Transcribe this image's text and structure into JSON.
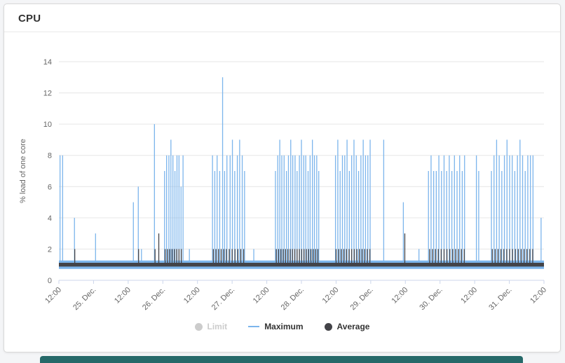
{
  "panel": {
    "title": "CPU"
  },
  "colors": {
    "page_background": "#f4f5f7",
    "card_background": "#ffffff",
    "card_border": "#d9d9d9",
    "grid": "#e6e6e6",
    "axis": "#ccd6eb",
    "tick_text": "#666666",
    "maximum": "#7cb5ec",
    "average": "#434348",
    "limit_disabled": "#cccccc",
    "next_section": "#266969"
  },
  "chart_data": {
    "type": "line",
    "title": "",
    "xlabel": "",
    "ylabel": "% load of one core",
    "ylim": [
      0,
      14
    ],
    "yticks": [
      0,
      2,
      4,
      6,
      8,
      10,
      12,
      14
    ],
    "grid": "horizontal",
    "legend_position": "bottom-center",
    "x_unit": "hours from first tick (12:00 24 Dec) to last tick (12:00 31 Dec)",
    "xlim": [
      0,
      168
    ],
    "xticks": [
      {
        "t": 0,
        "label": "12:00"
      },
      {
        "t": 12,
        "label": "25. Dec."
      },
      {
        "t": 24,
        "label": "12:00"
      },
      {
        "t": 36,
        "label": "26. Dec."
      },
      {
        "t": 48,
        "label": "12:00"
      },
      {
        "t": 60,
        "label": "27. Dec."
      },
      {
        "t": 72,
        "label": "12:00"
      },
      {
        "t": 84,
        "label": "28. Dec."
      },
      {
        "t": 96,
        "label": "12:00"
      },
      {
        "t": 108,
        "label": "29. Dec."
      },
      {
        "t": 120,
        "label": "12:00"
      },
      {
        "t": 132,
        "label": "30. Dec."
      },
      {
        "t": 144,
        "label": "12:00"
      },
      {
        "t": 156,
        "label": "31. Dec."
      },
      {
        "t": 168,
        "label": "12:00"
      }
    ],
    "legend": [
      {
        "label": "Limit",
        "enabled": false,
        "marker": "dot",
        "color": "#cccccc"
      },
      {
        "label": "Maximum",
        "enabled": true,
        "marker": "line",
        "color": "#7cb5ec"
      },
      {
        "label": "Average",
        "enabled": true,
        "marker": "dot",
        "color": "#434348"
      }
    ],
    "series": [
      {
        "name": "Maximum",
        "color": "#7cb5ec",
        "baseline": 1,
        "band_halfwidth": 0.27,
        "spikes": [
          [
            0.4,
            8
          ],
          [
            1.3,
            8
          ],
          [
            5.4,
            4
          ],
          [
            12.7,
            3
          ],
          [
            25.8,
            5
          ],
          [
            27.5,
            6
          ],
          [
            28.6,
            2
          ],
          [
            33.1,
            10
          ],
          [
            36.6,
            7
          ],
          [
            37.3,
            8
          ],
          [
            38.1,
            8
          ],
          [
            38.8,
            9
          ],
          [
            39.5,
            8
          ],
          [
            40.2,
            7
          ],
          [
            40.9,
            8
          ],
          [
            41.6,
            8
          ],
          [
            42.3,
            6
          ],
          [
            43.0,
            8
          ],
          [
            45.2,
            2
          ],
          [
            53.2,
            8
          ],
          [
            54.0,
            7
          ],
          [
            54.8,
            8
          ],
          [
            55.7,
            7
          ],
          [
            56.7,
            13
          ],
          [
            57.4,
            7
          ],
          [
            58.2,
            8
          ],
          [
            59.3,
            8
          ],
          [
            60.1,
            9
          ],
          [
            60.9,
            7
          ],
          [
            61.8,
            8
          ],
          [
            62.6,
            9
          ],
          [
            63.5,
            8
          ],
          [
            64.3,
            7
          ],
          [
            67.5,
            2
          ],
          [
            75.0,
            7
          ],
          [
            75.8,
            8
          ],
          [
            76.5,
            9
          ],
          [
            77.2,
            8
          ],
          [
            78.0,
            8
          ],
          [
            78.8,
            7
          ],
          [
            79.5,
            8
          ],
          [
            80.3,
            9
          ],
          [
            81.0,
            8
          ],
          [
            81.8,
            8
          ],
          [
            82.5,
            7
          ],
          [
            83.3,
            8
          ],
          [
            84.0,
            9
          ],
          [
            84.8,
            8
          ],
          [
            85.5,
            8
          ],
          [
            86.3,
            7
          ],
          [
            87.0,
            8
          ],
          [
            87.8,
            9
          ],
          [
            88.5,
            8
          ],
          [
            89.3,
            8
          ],
          [
            90.0,
            7
          ],
          [
            95.8,
            8
          ],
          [
            96.6,
            9
          ],
          [
            97.4,
            7
          ],
          [
            98.2,
            8
          ],
          [
            99.0,
            8
          ],
          [
            99.8,
            9
          ],
          [
            100.6,
            7
          ],
          [
            101.4,
            8
          ],
          [
            102.2,
            9
          ],
          [
            103.0,
            8
          ],
          [
            103.8,
            7
          ],
          [
            104.6,
            8
          ],
          [
            105.4,
            9
          ],
          [
            106.2,
            8
          ],
          [
            107.0,
            8
          ],
          [
            107.8,
            9
          ],
          [
            112.5,
            9
          ],
          [
            119.3,
            5
          ],
          [
            124.7,
            2
          ],
          [
            128.0,
            7
          ],
          [
            128.9,
            8
          ],
          [
            129.8,
            7
          ],
          [
            130.7,
            7
          ],
          [
            131.6,
            8
          ],
          [
            132.5,
            7
          ],
          [
            133.4,
            8
          ],
          [
            134.3,
            7
          ],
          [
            135.2,
            8
          ],
          [
            136.1,
            7
          ],
          [
            137.0,
            8
          ],
          [
            137.9,
            7
          ],
          [
            138.8,
            8
          ],
          [
            139.7,
            7
          ],
          [
            140.5,
            8
          ],
          [
            144.6,
            8
          ],
          [
            145.4,
            7
          ],
          [
            149.8,
            7
          ],
          [
            150.7,
            8
          ],
          [
            151.6,
            9
          ],
          [
            152.5,
            8
          ],
          [
            153.4,
            7
          ],
          [
            154.3,
            8
          ],
          [
            155.2,
            9
          ],
          [
            156.1,
            8
          ],
          [
            157.0,
            8
          ],
          [
            157.9,
            7
          ],
          [
            158.8,
            8
          ],
          [
            159.7,
            9
          ],
          [
            160.6,
            8
          ],
          [
            161.5,
            7
          ],
          [
            162.4,
            8
          ],
          [
            163.3,
            8
          ],
          [
            164.2,
            8
          ],
          [
            167.0,
            4
          ]
        ]
      },
      {
        "name": "Average",
        "color": "#434348",
        "baseline": 1,
        "band_halfwidth": 0.12,
        "spikes": [
          [
            5.5,
            2
          ],
          [
            27.6,
            2
          ],
          [
            33.3,
            2
          ],
          [
            34.6,
            3
          ],
          [
            36.8,
            2
          ],
          [
            37.6,
            2
          ],
          [
            38.4,
            2
          ],
          [
            39.2,
            2
          ],
          [
            40.0,
            2
          ],
          [
            40.8,
            2
          ],
          [
            41.6,
            2
          ],
          [
            42.4,
            2
          ],
          [
            53.5,
            2
          ],
          [
            54.4,
            2
          ],
          [
            55.3,
            2
          ],
          [
            56.2,
            2
          ],
          [
            57.1,
            2
          ],
          [
            58.0,
            2
          ],
          [
            59.0,
            2
          ],
          [
            60.0,
            2
          ],
          [
            61.0,
            2
          ],
          [
            62.0,
            2
          ],
          [
            63.0,
            2
          ],
          [
            64.0,
            2
          ],
          [
            75.3,
            2
          ],
          [
            76.1,
            2
          ],
          [
            76.9,
            2
          ],
          [
            77.7,
            2
          ],
          [
            78.5,
            2
          ],
          [
            79.3,
            2
          ],
          [
            80.1,
            2
          ],
          [
            80.9,
            2
          ],
          [
            81.7,
            2
          ],
          [
            82.5,
            2
          ],
          [
            83.3,
            2
          ],
          [
            84.1,
            2
          ],
          [
            84.9,
            2
          ],
          [
            85.7,
            2
          ],
          [
            86.5,
            2
          ],
          [
            87.3,
            2
          ],
          [
            88.1,
            2
          ],
          [
            88.9,
            2
          ],
          [
            89.7,
            2
          ],
          [
            96.0,
            2
          ],
          [
            96.9,
            2
          ],
          [
            97.8,
            2
          ],
          [
            98.7,
            2
          ],
          [
            99.6,
            2
          ],
          [
            100.5,
            2
          ],
          [
            101.4,
            2
          ],
          [
            102.3,
            2
          ],
          [
            103.2,
            2
          ],
          [
            104.1,
            2
          ],
          [
            105.0,
            2
          ],
          [
            105.9,
            2
          ],
          [
            106.8,
            2
          ],
          [
            107.7,
            2
          ],
          [
            119.8,
            3
          ],
          [
            128.4,
            2
          ],
          [
            129.4,
            2
          ],
          [
            130.4,
            2
          ],
          [
            131.4,
            2
          ],
          [
            132.4,
            2
          ],
          [
            133.4,
            2
          ],
          [
            134.4,
            2
          ],
          [
            135.4,
            2
          ],
          [
            136.4,
            2
          ],
          [
            137.4,
            2
          ],
          [
            138.4,
            2
          ],
          [
            139.4,
            2
          ],
          [
            140.4,
            2
          ],
          [
            150.1,
            2
          ],
          [
            151.1,
            2
          ],
          [
            152.1,
            2
          ],
          [
            153.1,
            2
          ],
          [
            154.1,
            2
          ],
          [
            155.1,
            2
          ],
          [
            156.1,
            2
          ],
          [
            157.1,
            2
          ],
          [
            158.1,
            2
          ],
          [
            159.1,
            2
          ],
          [
            160.1,
            2
          ],
          [
            161.1,
            2
          ],
          [
            162.1,
            2
          ],
          [
            163.1,
            2
          ],
          [
            164.1,
            2
          ]
        ]
      }
    ]
  }
}
